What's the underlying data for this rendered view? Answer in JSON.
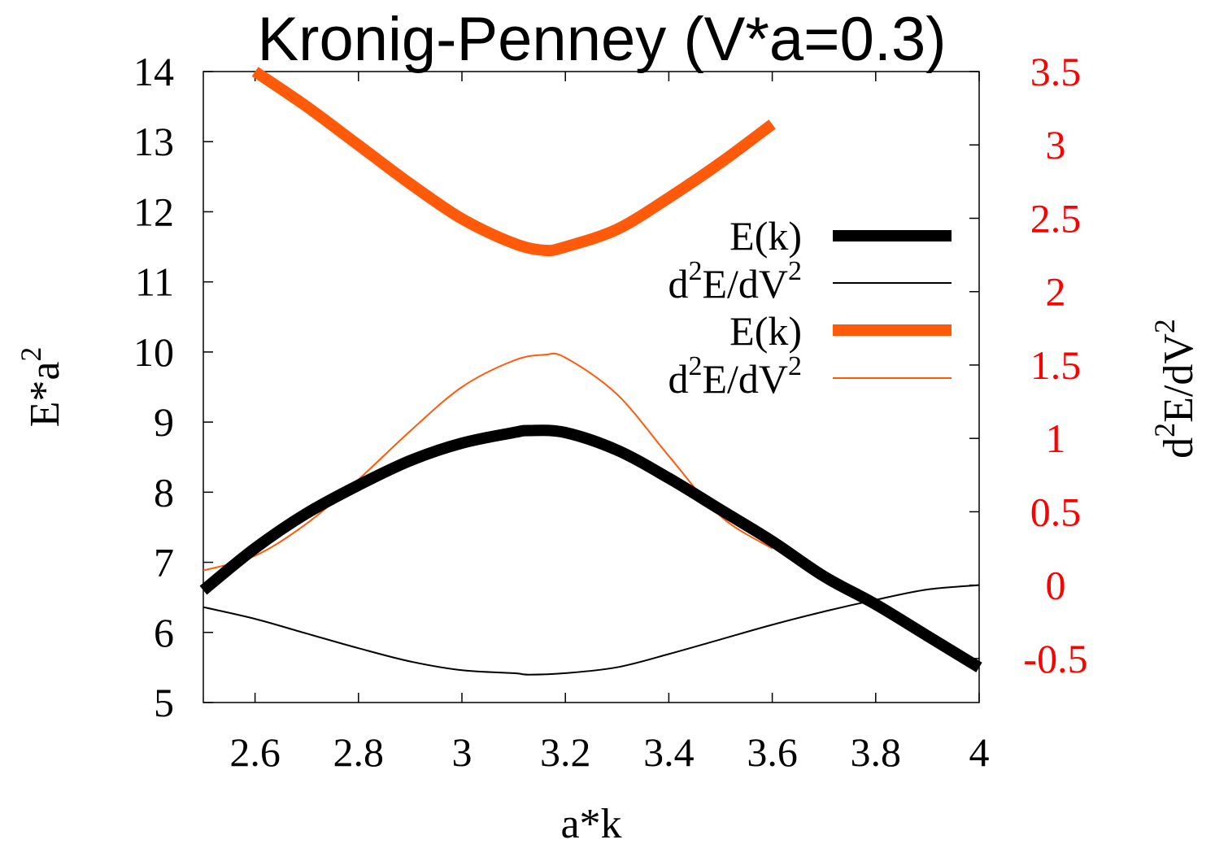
{
  "chart_data": {
    "type": "line",
    "title": "Kronig-Penney (V*a=0.3)",
    "xlabel": "a*k",
    "ylabel": {
      "base": "E*a",
      "sup": "2"
    },
    "y2label": {
      "pre": "d",
      "sup1": "2",
      "mid": "E/dV",
      "sup2": "2"
    },
    "xlim": [
      2.5,
      4.0
    ],
    "ylim": [
      5,
      14
    ],
    "y2lim": [
      -0.8,
      3.5
    ],
    "xticks": [
      "2.6",
      "2.8",
      "3",
      "3.2",
      "3.4",
      "3.6",
      "3.8",
      "4"
    ],
    "xtick_values": [
      2.6,
      2.8,
      3.0,
      3.2,
      3.4,
      3.6,
      3.8,
      4.0
    ],
    "yticks": [
      "5",
      "6",
      "7",
      "8",
      "9",
      "10",
      "11",
      "12",
      "13",
      "14"
    ],
    "ytick_values": [
      5,
      6,
      7,
      8,
      9,
      10,
      11,
      12,
      13,
      14
    ],
    "y2ticks": [
      "-0.5",
      "0",
      "0.5",
      "1",
      "1.5",
      "2",
      "2.5",
      "3",
      "3.5"
    ],
    "y2tick_values": [
      -0.5,
      0,
      0.5,
      1,
      1.5,
      2,
      2.5,
      3,
      3.5
    ],
    "grid": false,
    "legend_position": "right",
    "colors": {
      "black": "#000000",
      "orange": "#ff5a0a",
      "right_axis": "#ff0000"
    },
    "series": [
      {
        "name": {
          "text": "E(k)"
        },
        "axis": "left",
        "color": "#000000",
        "weight": "thick",
        "x": [
          2.5,
          2.6,
          2.7,
          2.8,
          2.9,
          3.0,
          3.1,
          3.13,
          3.2,
          3.3,
          3.4,
          3.5,
          3.6,
          3.7,
          3.8,
          3.9,
          4.0
        ],
        "y": [
          6.6,
          7.2,
          7.7,
          8.1,
          8.45,
          8.7,
          8.85,
          8.88,
          8.85,
          8.6,
          8.2,
          7.75,
          7.3,
          6.8,
          6.4,
          5.95,
          5.5
        ]
      },
      {
        "name": {
          "pre": "d",
          "sup1": "2",
          "mid": "E/dV",
          "sup2": "2"
        },
        "axis": "right",
        "color": "#000000",
        "weight": "thin",
        "x": [
          2.5,
          2.6,
          2.7,
          2.8,
          2.9,
          3.0,
          3.1,
          3.13,
          3.2,
          3.3,
          3.4,
          3.5,
          3.6,
          3.7,
          3.8,
          3.9,
          4.0
        ],
        "y": [
          -0.15,
          -0.23,
          -0.33,
          -0.43,
          -0.52,
          -0.58,
          -0.6,
          -0.61,
          -0.6,
          -0.56,
          -0.47,
          -0.37,
          -0.27,
          -0.18,
          -0.1,
          -0.03,
          0.0
        ]
      },
      {
        "name": {
          "text": "E(k)"
        },
        "axis": "left",
        "color": "#ff5a0a",
        "weight": "thick",
        "x": [
          2.6,
          2.7,
          2.8,
          2.9,
          3.0,
          3.1,
          3.16,
          3.2,
          3.3,
          3.4,
          3.5,
          3.6
        ],
        "y": [
          14.0,
          13.5,
          12.95,
          12.4,
          11.9,
          11.55,
          11.45,
          11.5,
          11.75,
          12.2,
          12.7,
          13.25
        ]
      },
      {
        "name": {
          "pre": "d",
          "sup1": "2",
          "mid": "E/dV",
          "sup2": "2"
        },
        "axis": "right",
        "color": "#ff5a0a",
        "weight": "thin",
        "x": [
          2.5,
          2.6,
          2.7,
          2.8,
          2.9,
          3.0,
          3.1,
          3.16,
          3.2,
          3.3,
          3.4,
          3.5,
          3.6
        ],
        "y": [
          0.1,
          0.2,
          0.42,
          0.72,
          1.05,
          1.35,
          1.53,
          1.57,
          1.55,
          1.3,
          0.88,
          0.47,
          0.25
        ]
      }
    ]
  }
}
